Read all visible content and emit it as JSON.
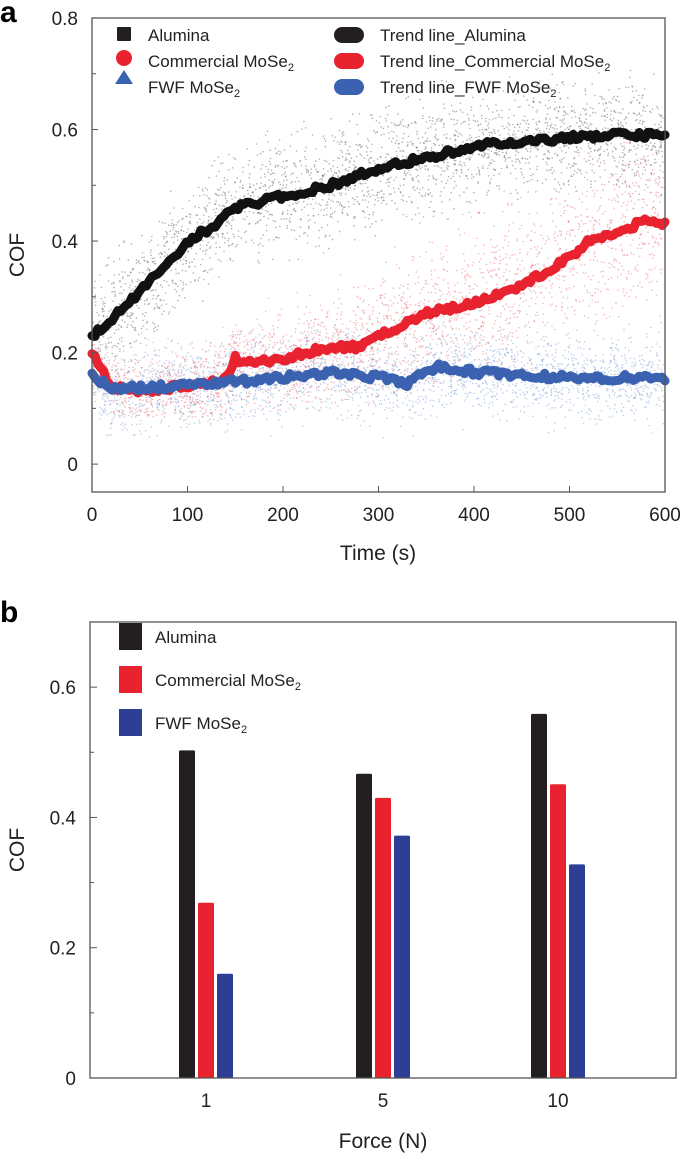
{
  "chart_data": [
    {
      "panel_label": "a",
      "type": "scatter",
      "xlabel": "Time (s)",
      "ylabel": "COF",
      "xlim": [
        0,
        600
      ],
      "ylim": [
        -0.05,
        0.8
      ],
      "xticks": [
        "0",
        "100",
        "200",
        "300",
        "400",
        "500",
        "600"
      ],
      "yticks": [
        "0",
        "0.2",
        "0.4",
        "0.6",
        "0.8"
      ],
      "grid": false,
      "legend_position": "top",
      "legend": [
        "Alumina",
        "Commercial MoSe₂",
        "FWF MoSe₂",
        "Trend line_Alumina",
        "Trend line_Commercial MoSe₂",
        "Trend line_FWF MoSe₂"
      ],
      "series": [
        {
          "name": "Trend line_Alumina",
          "color": "#111111",
          "scatter_color": "#555555",
          "x": [
            0,
            20,
            50,
            80,
            100,
            130,
            150,
            200,
            250,
            300,
            350,
            400,
            450,
            500,
            550,
            600
          ],
          "y": [
            0.23,
            0.26,
            0.31,
            0.36,
            0.4,
            0.43,
            0.46,
            0.48,
            0.5,
            0.53,
            0.55,
            0.57,
            0.58,
            0.585,
            0.59,
            0.59
          ]
        },
        {
          "name": "Trend line_Commercial MoSe₂",
          "color": "#e8232f",
          "scatter_color": "#e8606a",
          "x": [
            0,
            20,
            50,
            100,
            140,
            150,
            160,
            200,
            250,
            280,
            300,
            350,
            400,
            450,
            500,
            520,
            550,
            580,
            600
          ],
          "y": [
            0.2,
            0.14,
            0.13,
            0.14,
            0.15,
            0.19,
            0.18,
            0.19,
            0.21,
            0.21,
            0.23,
            0.27,
            0.29,
            0.32,
            0.37,
            0.4,
            0.41,
            0.44,
            0.43
          ]
        },
        {
          "name": "Trend line_FWF MoSe₂",
          "color": "#3a62b0",
          "scatter_color": "#6f95d0",
          "x": [
            0,
            20,
            100,
            200,
            250,
            300,
            330,
            360,
            400,
            500,
            600
          ],
          "y": [
            0.16,
            0.135,
            0.14,
            0.155,
            0.165,
            0.155,
            0.145,
            0.175,
            0.165,
            0.155,
            0.155
          ]
        }
      ]
    },
    {
      "panel_label": "b",
      "type": "bar",
      "xlabel": "Force (N)",
      "ylabel": "COF",
      "categories": [
        "1",
        "5",
        "10"
      ],
      "ylim": [
        0,
        0.7
      ],
      "yticks": [
        "0",
        "0.2",
        "0.4",
        "0.6"
      ],
      "grid": false,
      "legend_position": "top-left",
      "series": [
        {
          "name": "Alumina",
          "color": "#231f20",
          "values": [
            0.503,
            0.467,
            0.559
          ]
        },
        {
          "name": "Commercial MoSe₂",
          "color": "#e8232f",
          "values": [
            0.269,
            0.43,
            0.451
          ]
        },
        {
          "name": "FWF MoSe₂",
          "color": "#2c3f95",
          "values": [
            0.16,
            0.372,
            0.328
          ]
        }
      ]
    }
  ]
}
